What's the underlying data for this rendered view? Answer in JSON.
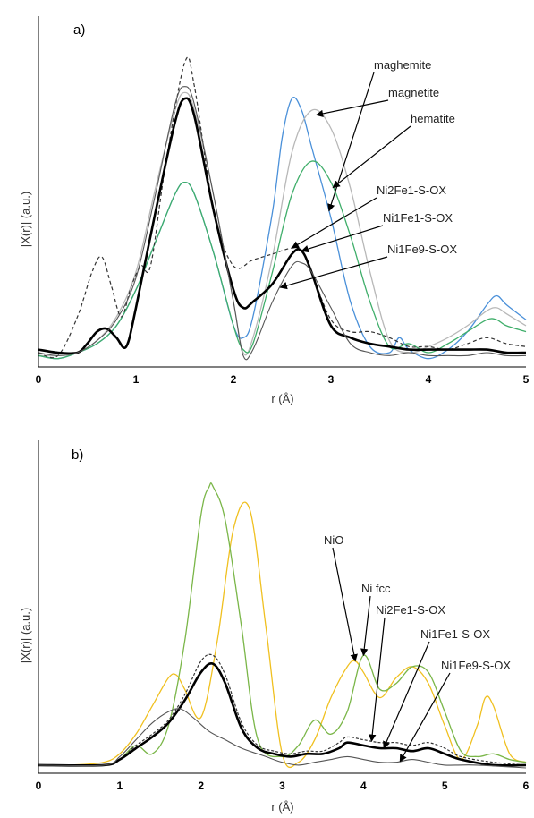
{
  "chart_data": [
    {
      "type": "line",
      "panel_label": "a)",
      "xlabel": "r (Å)",
      "ylabel": "|X(r)| (a.u.)",
      "xlim": [
        0,
        5
      ],
      "ylim": [
        0,
        1.0
      ],
      "xticks": [
        "0",
        "1",
        "2",
        "3",
        "4",
        "5"
      ],
      "grid": false,
      "series": [
        {
          "name": "maghemite",
          "color": "#4a90d9",
          "width": 1.3,
          "dash": "",
          "x": [
            0,
            0.2,
            0.4,
            0.6,
            0.8,
            1.0,
            1.2,
            1.4,
            1.5,
            1.6,
            1.8,
            2.0,
            2.1,
            2.2,
            2.4,
            2.5,
            2.6,
            2.7,
            2.8,
            3.0,
            3.2,
            3.4,
            3.6,
            3.7,
            3.8,
            4.0,
            4.2,
            4.4,
            4.6,
            4.7,
            4.8,
            5.0
          ],
          "y": [
            0.02,
            0.01,
            0.03,
            0.06,
            0.12,
            0.24,
            0.4,
            0.56,
            0.6,
            0.56,
            0.36,
            0.12,
            0.08,
            0.15,
            0.5,
            0.75,
            0.88,
            0.84,
            0.72,
            0.48,
            0.2,
            0.05,
            0.03,
            0.08,
            0.04,
            0.01,
            0.04,
            0.1,
            0.19,
            0.22,
            0.19,
            0.14
          ]
        },
        {
          "name": "magnetite",
          "color": "#b8b8b8",
          "width": 1.3,
          "dash": "",
          "x": [
            0,
            0.2,
            0.4,
            0.6,
            0.8,
            1.0,
            1.2,
            1.4,
            1.5,
            1.6,
            1.8,
            2.0,
            2.1,
            2.2,
            2.4,
            2.6,
            2.8,
            3.0,
            3.2,
            3.4,
            3.6,
            3.8,
            4.0,
            4.2,
            4.4,
            4.6,
            4.7,
            4.8,
            5.0
          ],
          "y": [
            0.02,
            0.02,
            0.03,
            0.07,
            0.15,
            0.3,
            0.58,
            0.84,
            0.9,
            0.84,
            0.55,
            0.2,
            0.03,
            0.08,
            0.35,
            0.7,
            0.84,
            0.78,
            0.58,
            0.3,
            0.07,
            0.03,
            0.05,
            0.08,
            0.12,
            0.17,
            0.18,
            0.16,
            0.12
          ]
        },
        {
          "name": "hematite",
          "color": "#3fae6a",
          "width": 1.3,
          "dash": "",
          "x": [
            0,
            0.2,
            0.4,
            0.6,
            0.8,
            1.0,
            1.2,
            1.4,
            1.5,
            1.6,
            1.8,
            2.0,
            2.1,
            2.2,
            2.4,
            2.6,
            2.8,
            3.0,
            3.2,
            3.4,
            3.6,
            3.8,
            4.0,
            4.2,
            4.4,
            4.6,
            4.7,
            4.8,
            5.0
          ],
          "y": [
            0.02,
            0.01,
            0.03,
            0.06,
            0.12,
            0.24,
            0.4,
            0.56,
            0.6,
            0.56,
            0.36,
            0.12,
            0.04,
            0.06,
            0.3,
            0.56,
            0.67,
            0.6,
            0.42,
            0.2,
            0.05,
            0.06,
            0.03,
            0.06,
            0.1,
            0.14,
            0.14,
            0.12,
            0.1
          ]
        },
        {
          "name": "Ni2Fe1-S-OX",
          "color": "#333333",
          "width": 1.2,
          "dash": "4,3",
          "x": [
            0,
            0.2,
            0.4,
            0.55,
            0.65,
            0.75,
            0.85,
            0.95,
            1.05,
            1.15,
            1.3,
            1.5,
            1.6,
            1.8,
            2.0,
            2.2,
            2.4,
            2.6,
            2.7,
            2.8,
            3.0,
            3.2,
            3.4,
            3.6,
            3.8,
            4.0,
            4.2,
            4.4,
            4.6,
            4.8,
            5.0
          ],
          "y": [
            0.03,
            0.02,
            0.15,
            0.3,
            0.35,
            0.25,
            0.15,
            0.25,
            0.32,
            0.32,
            0.65,
            1.0,
            0.92,
            0.5,
            0.32,
            0.34,
            0.36,
            0.38,
            0.37,
            0.3,
            0.14,
            0.1,
            0.1,
            0.08,
            0.05,
            0.05,
            0.04,
            0.06,
            0.08,
            0.06,
            0.05
          ]
        },
        {
          "name": "Ni1Fe1-S-OX",
          "color": "#000000",
          "width": 2.6,
          "dash": "",
          "x": [
            0,
            0.2,
            0.4,
            0.5,
            0.6,
            0.7,
            0.8,
            0.9,
            1.0,
            1.2,
            1.4,
            1.5,
            1.6,
            1.8,
            2.0,
            2.1,
            2.2,
            2.4,
            2.6,
            2.7,
            2.8,
            3.0,
            3.2,
            3.4,
            3.6,
            3.8,
            4.0,
            4.2,
            4.4,
            4.6,
            4.8,
            5.0
          ],
          "y": [
            0.04,
            0.03,
            0.03,
            0.06,
            0.1,
            0.11,
            0.08,
            0.05,
            0.18,
            0.5,
            0.8,
            0.88,
            0.82,
            0.5,
            0.24,
            0.18,
            0.2,
            0.26,
            0.36,
            0.37,
            0.3,
            0.12,
            0.08,
            0.06,
            0.05,
            0.04,
            0.04,
            0.04,
            0.04,
            0.04,
            0.03,
            0.03
          ]
        },
        {
          "name": "Ni1Fe9-S-OX",
          "color": "#555555",
          "width": 1.1,
          "dash": "",
          "x": [
            0,
            0.2,
            0.4,
            0.6,
            0.8,
            1.0,
            1.2,
            1.4,
            1.5,
            1.6,
            1.8,
            2.0,
            2.1,
            2.2,
            2.4,
            2.6,
            2.7,
            2.8,
            3.0,
            3.2,
            3.4,
            3.6,
            3.8,
            4.0,
            4.2,
            4.4,
            4.6,
            4.8,
            5.0
          ],
          "y": [
            0.03,
            0.02,
            0.03,
            0.07,
            0.14,
            0.28,
            0.56,
            0.86,
            0.92,
            0.86,
            0.55,
            0.2,
            0.02,
            0.04,
            0.2,
            0.32,
            0.33,
            0.3,
            0.18,
            0.06,
            0.03,
            0.02,
            0.03,
            0.02,
            0.02,
            0.02,
            0.03,
            0.02,
            0.02
          ]
        }
      ],
      "annotations": [
        {
          "text": "maghemite",
          "series": "maghemite",
          "tip_x": 2.98
        },
        {
          "text": "magnetite",
          "series": "magnetite",
          "tip_x": 2.85
        },
        {
          "text": "hematite",
          "series": "hematite",
          "tip_x": 3.02
        },
        {
          "text": "Ni2Fe1-S-OX",
          "series": "Ni2Fe1-S-OX",
          "tip_x": 2.6
        },
        {
          "text": "Ni1Fe1-S-OX",
          "series": "Ni1Fe1-S-OX",
          "tip_x": 2.7
        },
        {
          "text": "Ni1Fe9-S-OX",
          "series": "Ni1Fe9-S-OX",
          "tip_x": 2.48
        }
      ]
    },
    {
      "type": "line",
      "panel_label": "b)",
      "xlabel": "r (Å)",
      "ylabel": "|X(r)| (a.u.)",
      "xlim": [
        0,
        6
      ],
      "ylim": [
        0,
        1.0
      ],
      "xticks": [
        "0",
        "1",
        "2",
        "3",
        "4",
        "5",
        "6"
      ],
      "grid": false,
      "series": [
        {
          "name": "NiO",
          "color": "#f0c020",
          "width": 1.3,
          "dash": "",
          "x": [
            0,
            0.4,
            0.8,
            1.0,
            1.2,
            1.4,
            1.6,
            1.7,
            1.8,
            2.0,
            2.2,
            2.4,
            2.6,
            2.8,
            3.0,
            3.2,
            3.4,
            3.6,
            3.8,
            3.9,
            4.0,
            4.2,
            4.4,
            4.6,
            4.8,
            5.0,
            5.2,
            5.4,
            5.5,
            5.6,
            5.8,
            6.0
          ],
          "y": [
            0.01,
            0.01,
            0.02,
            0.05,
            0.12,
            0.22,
            0.32,
            0.33,
            0.28,
            0.18,
            0.45,
            0.85,
            0.92,
            0.5,
            0.05,
            0.02,
            0.1,
            0.25,
            0.36,
            0.38,
            0.34,
            0.25,
            0.32,
            0.36,
            0.3,
            0.15,
            0.03,
            0.15,
            0.25,
            0.22,
            0.05,
            0.02
          ]
        },
        {
          "name": "Ni fcc",
          "color": "#7ab648",
          "width": 1.3,
          "dash": "",
          "x": [
            0,
            0.4,
            0.8,
            1.0,
            1.2,
            1.4,
            1.6,
            1.8,
            2.0,
            2.1,
            2.15,
            2.3,
            2.5,
            2.7,
            3.0,
            3.2,
            3.4,
            3.6,
            3.8,
            4.0,
            4.2,
            4.4,
            4.6,
            4.8,
            5.0,
            5.2,
            5.4,
            5.6,
            5.8,
            6.0
          ],
          "y": [
            0.01,
            0.01,
            0.01,
            0.03,
            0.08,
            0.05,
            0.15,
            0.45,
            0.9,
            1.0,
            1.0,
            0.88,
            0.5,
            0.1,
            0.04,
            0.08,
            0.17,
            0.12,
            0.2,
            0.4,
            0.28,
            0.3,
            0.36,
            0.34,
            0.2,
            0.06,
            0.04,
            0.05,
            0.03,
            0.02
          ]
        },
        {
          "name": "Ni2Fe1-S-OX",
          "color": "#333333",
          "width": 1.2,
          "dash": "3,2",
          "x": [
            0,
            0.8,
            1.0,
            1.2,
            1.4,
            1.6,
            1.8,
            2.0,
            2.15,
            2.3,
            2.5,
            2.7,
            2.9,
            3.1,
            3.3,
            3.5,
            3.7,
            3.8,
            4.0,
            4.2,
            4.4,
            4.6,
            4.8,
            5.0,
            5.2,
            5.6,
            6.0
          ],
          "y": [
            0.01,
            0.01,
            0.03,
            0.08,
            0.12,
            0.17,
            0.26,
            0.38,
            0.4,
            0.33,
            0.16,
            0.08,
            0.06,
            0.05,
            0.06,
            0.06,
            0.09,
            0.11,
            0.1,
            0.09,
            0.09,
            0.08,
            0.09,
            0.07,
            0.04,
            0.02,
            0.01
          ]
        },
        {
          "name": "Ni1Fe1-S-OX",
          "color": "#000000",
          "width": 2.6,
          "dash": "",
          "x": [
            0,
            0.8,
            1.0,
            1.2,
            1.4,
            1.6,
            1.8,
            2.0,
            2.15,
            2.3,
            2.5,
            2.7,
            2.9,
            3.1,
            3.3,
            3.5,
            3.7,
            3.8,
            4.0,
            4.2,
            4.4,
            4.6,
            4.8,
            5.0,
            5.2,
            5.6,
            6.0
          ],
          "y": [
            0.01,
            0.01,
            0.03,
            0.07,
            0.11,
            0.16,
            0.24,
            0.34,
            0.37,
            0.3,
            0.14,
            0.07,
            0.05,
            0.04,
            0.05,
            0.05,
            0.07,
            0.09,
            0.08,
            0.07,
            0.07,
            0.06,
            0.07,
            0.05,
            0.03,
            0.01,
            0.01
          ]
        },
        {
          "name": "Ni1Fe9-S-OX",
          "color": "#555555",
          "width": 1.1,
          "dash": "",
          "x": [
            0,
            0.8,
            1.0,
            1.2,
            1.4,
            1.6,
            1.75,
            1.9,
            2.1,
            2.3,
            2.5,
            2.8,
            3.0,
            3.2,
            3.4,
            3.6,
            3.8,
            4.0,
            4.2,
            4.4,
            4.6,
            4.8,
            5.0,
            5.4,
            6.0
          ],
          "y": [
            0.01,
            0.01,
            0.04,
            0.1,
            0.16,
            0.2,
            0.21,
            0.18,
            0.13,
            0.1,
            0.07,
            0.04,
            0.02,
            0.01,
            0.02,
            0.03,
            0.04,
            0.03,
            0.02,
            0.02,
            0.03,
            0.02,
            0.01,
            0.01,
            0.0
          ]
        }
      ],
      "annotations": [
        {
          "text": "NiO",
          "series": "NiO",
          "tip_x": 3.9
        },
        {
          "text": "Ni fcc",
          "series": "Ni fcc",
          "tip_x": 4.0
        },
        {
          "text": "Ni2Fe1-S-OX",
          "series": "Ni2Fe1-S-OX",
          "tip_x": 4.1
        },
        {
          "text": "Ni1Fe1-S-OX",
          "series": "Ni1Fe1-S-OX",
          "tip_x": 4.25
        },
        {
          "text": "Ni1Fe9-S-OX",
          "series": "Ni1Fe9-S-OX",
          "tip_x": 4.45
        }
      ]
    }
  ]
}
